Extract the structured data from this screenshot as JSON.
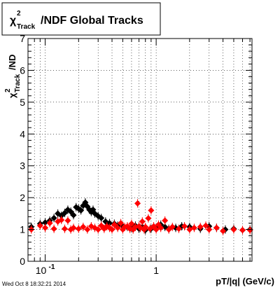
{
  "chart_data": {
    "type": "scatter",
    "title": {
      "chi": "χ",
      "superscript": "2",
      "subscript": "Track",
      "rest": "/NDF  Global Tracks"
    },
    "xlabel": "pT/|q| (GeV/c)",
    "ylabel": {
      "chi": "χ",
      "superscript": "2",
      "subscript": "Track",
      "rest": "/ND"
    },
    "x_scale": "log",
    "xlim": [
      0.07,
      7.3
    ],
    "ylim": [
      0,
      7
    ],
    "x_ticks": [
      {
        "value": 0.1,
        "label": "10",
        "exponent": "-1"
      },
      {
        "value": 1,
        "label": "1",
        "exponent": ""
      }
    ],
    "y_ticks": [
      0,
      1,
      2,
      3,
      4,
      5,
      6,
      7
    ],
    "grid": true,
    "timestamp": "Wed Oct  8 18:32:21 2014",
    "series": [
      {
        "color": "#000000",
        "points": [
          [
            0.075,
            1.08
          ],
          [
            0.09,
            1.18
          ],
          [
            0.1,
            1.22
          ],
          [
            0.11,
            1.28
          ],
          [
            0.12,
            1.36
          ],
          [
            0.13,
            1.5
          ],
          [
            0.14,
            1.43
          ],
          [
            0.15,
            1.52
          ],
          [
            0.16,
            1.62
          ],
          [
            0.17,
            1.56
          ],
          [
            0.18,
            1.45
          ],
          [
            0.19,
            1.7
          ],
          [
            0.2,
            1.65
          ],
          [
            0.21,
            1.6
          ],
          [
            0.22,
            1.75
          ],
          [
            0.23,
            1.85
          ],
          [
            0.24,
            1.72
          ],
          [
            0.25,
            1.62
          ],
          [
            0.26,
            1.55
          ],
          [
            0.27,
            1.62
          ],
          [
            0.28,
            1.5
          ],
          [
            0.3,
            1.42
          ],
          [
            0.32,
            1.36
          ],
          [
            0.35,
            1.25
          ],
          [
            0.38,
            1.2
          ],
          [
            0.42,
            1.18
          ],
          [
            0.45,
            1.12
          ],
          [
            0.5,
            1.1
          ],
          [
            0.55,
            1.08
          ],
          [
            0.6,
            1.05
          ],
          [
            0.65,
            1.12
          ],
          [
            0.7,
            1.02
          ],
          [
            0.75,
            1.08
          ],
          [
            0.8,
            0.98
          ],
          [
            0.9,
            1.02
          ],
          [
            1.0,
            1.05
          ],
          [
            1.1,
            1.15
          ],
          [
            1.2,
            1.08
          ],
          [
            1.3,
            1.02
          ],
          [
            1.5,
            1.05
          ],
          [
            1.7,
            1.1
          ],
          [
            2.0,
            1.08
          ],
          [
            2.5,
            1.02
          ],
          [
            3.0,
            1.1
          ],
          [
            3.5,
            1.05
          ],
          [
            4.2,
            1.0
          ],
          [
            5.0,
            1.02
          ],
          [
            6.0,
            0.98
          ],
          [
            7.0,
            1.0
          ]
        ]
      },
      {
        "color": "#ff0000",
        "points": [
          [
            0.075,
            1.0
          ],
          [
            0.09,
            1.12
          ],
          [
            0.1,
            1.05
          ],
          [
            0.11,
            1.2
          ],
          [
            0.12,
            1.02
          ],
          [
            0.13,
            1.25
          ],
          [
            0.14,
            1.3
          ],
          [
            0.15,
            1.02
          ],
          [
            0.16,
            1.28
          ],
          [
            0.17,
            1.0
          ],
          [
            0.18,
            1.05
          ],
          [
            0.2,
            1.02
          ],
          [
            0.22,
            1.08
          ],
          [
            0.24,
            1.0
          ],
          [
            0.26,
            1.1
          ],
          [
            0.28,
            1.05
          ],
          [
            0.3,
            1.0
          ],
          [
            0.32,
            1.12
          ],
          [
            0.34,
            1.02
          ],
          [
            0.36,
            1.1
          ],
          [
            0.38,
            1.05
          ],
          [
            0.4,
            1.0
          ],
          [
            0.42,
            1.15
          ],
          [
            0.45,
            1.05
          ],
          [
            0.48,
            1.2
          ],
          [
            0.5,
            1.0
          ],
          [
            0.52,
            1.08
          ],
          [
            0.55,
            1.1
          ],
          [
            0.58,
            1.02
          ],
          [
            0.6,
            1.18
          ],
          [
            0.62,
            1.0
          ],
          [
            0.65,
            1.08
          ],
          [
            0.68,
            1.82
          ],
          [
            0.7,
            1.1
          ],
          [
            0.72,
            1.05
          ],
          [
            0.75,
            1.25
          ],
          [
            0.78,
            1.0
          ],
          [
            0.8,
            1.08
          ],
          [
            0.85,
            1.35
          ],
          [
            0.88,
            1.02
          ],
          [
            0.9,
            1.6
          ],
          [
            0.95,
            1.1
          ],
          [
            1.0,
            1.0
          ],
          [
            1.05,
            1.15
          ],
          [
            1.1,
            1.05
          ],
          [
            1.2,
            1.28
          ],
          [
            1.3,
            1.0
          ],
          [
            1.4,
            1.08
          ],
          [
            1.6,
            1.02
          ],
          [
            1.8,
            1.1
          ],
          [
            2.0,
            1.0
          ],
          [
            2.2,
            1.05
          ],
          [
            2.5,
            1.08
          ],
          [
            2.8,
            1.12
          ],
          [
            3.0,
            1.0
          ],
          [
            3.5,
            1.05
          ],
          [
            4.0,
            0.95
          ],
          [
            5.0,
            1.0
          ],
          [
            6.0,
            0.98
          ],
          [
            7.0,
            0.98
          ]
        ]
      }
    ]
  }
}
